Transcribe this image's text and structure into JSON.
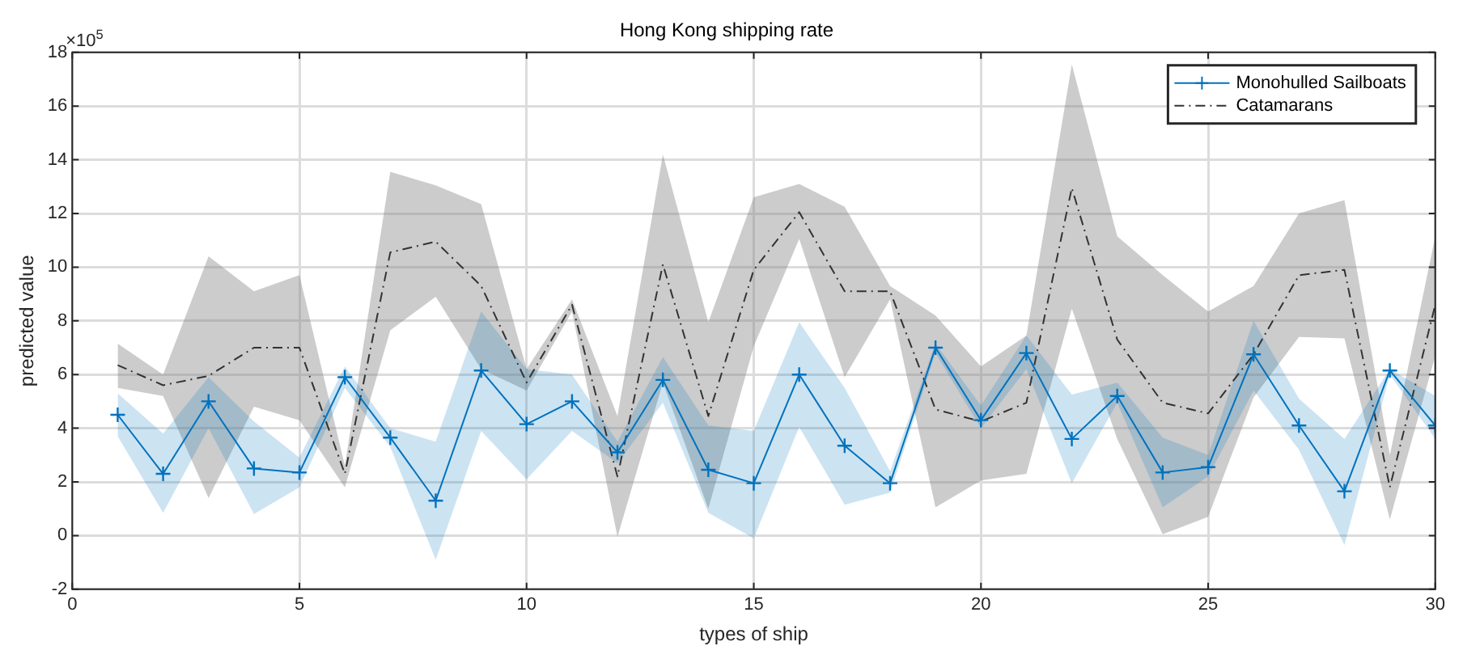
{
  "chart_data": {
    "type": "line",
    "title": "Hong Kong shipping rate",
    "xlabel": "types of ship",
    "ylabel": "predicted value",
    "annotations": [
      "×10$^{5}$"
    ],
    "x": [
      1,
      2,
      3,
      4,
      5,
      6,
      7,
      8,
      9,
      10,
      11,
      12,
      13,
      14,
      15,
      16,
      17,
      18,
      19,
      20,
      21,
      22,
      23,
      24,
      25,
      26,
      27,
      28,
      29,
      30
    ],
    "series": [
      {
        "name": "Monohulled Sailboats",
        "color": "#0072bd",
        "marker": "cross",
        "line_style": "solid",
        "values": [
          4.5,
          2.3,
          5.0,
          2.5,
          2.35,
          5.9,
          3.65,
          1.3,
          6.15,
          4.15,
          5.0,
          3.1,
          5.8,
          2.45,
          1.95,
          6.0,
          3.35,
          1.95,
          7.0,
          4.3,
          6.8,
          3.6,
          5.2,
          2.35,
          2.55,
          6.75,
          4.1,
          1.65,
          6.15,
          4.1
        ],
        "lower": [
          3.7,
          0.85,
          4.0,
          0.8,
          1.8,
          5.5,
          3.3,
          -0.9,
          3.9,
          2.1,
          3.9,
          2.7,
          4.95,
          0.85,
          -0.1,
          4.05,
          1.15,
          1.6,
          6.8,
          4.0,
          6.2,
          1.95,
          4.95,
          1.05,
          2.2,
          5.4,
          3.2,
          -0.35,
          6.0,
          3.6
        ],
        "upper": [
          5.3,
          3.8,
          5.9,
          4.25,
          2.9,
          6.3,
          4.0,
          3.5,
          8.35,
          6.2,
          6.0,
          3.5,
          6.65,
          4.1,
          3.9,
          7.95,
          5.5,
          2.4,
          7.15,
          4.85,
          7.45,
          5.25,
          5.7,
          3.65,
          3.0,
          8.0,
          5.1,
          3.6,
          6.2,
          5.2
        ]
      },
      {
        "name": "Catamarans",
        "color": "#333333",
        "marker": "none",
        "line_style": "dashed",
        "values": [
          6.35,
          5.6,
          5.95,
          7.0,
          7.0,
          2.3,
          10.55,
          10.95,
          9.3,
          5.7,
          8.6,
          2.2,
          10.1,
          4.45,
          9.9,
          12.05,
          9.1,
          9.1,
          4.7,
          4.25,
          4.95,
          12.95,
          7.3,
          4.95,
          4.55,
          6.75,
          9.7,
          9.9,
          1.8,
          8.6
        ],
        "lower": [
          5.5,
          5.2,
          1.4,
          4.8,
          4.3,
          1.8,
          7.65,
          8.9,
          6.2,
          5.4,
          8.35,
          -0.05,
          5.7,
          1.0,
          7.05,
          11.05,
          5.9,
          8.8,
          1.05,
          2.05,
          2.3,
          8.45,
          3.6,
          0.05,
          0.7,
          5.15,
          7.4,
          7.35,
          0.6,
          6.7
        ],
        "upper": [
          7.15,
          6.0,
          10.4,
          9.1,
          9.7,
          2.6,
          13.55,
          13.05,
          12.35,
          6.2,
          8.8,
          4.45,
          14.2,
          7.95,
          12.6,
          13.1,
          12.25,
          9.3,
          8.2,
          6.3,
          7.45,
          17.55,
          11.15,
          9.7,
          8.35,
          9.3,
          12.0,
          12.5,
          3.0,
          11.15
        ]
      }
    ],
    "xlim": [
      0,
      30
    ],
    "xticks": [
      0,
      5,
      10,
      15,
      20,
      25,
      30
    ],
    "ylim": [
      -2,
      18
    ],
    "yticks": [
      -2,
      0,
      2,
      4,
      6,
      8,
      10,
      12,
      14,
      16,
      18
    ],
    "grid": true,
    "legend": "top right"
  }
}
